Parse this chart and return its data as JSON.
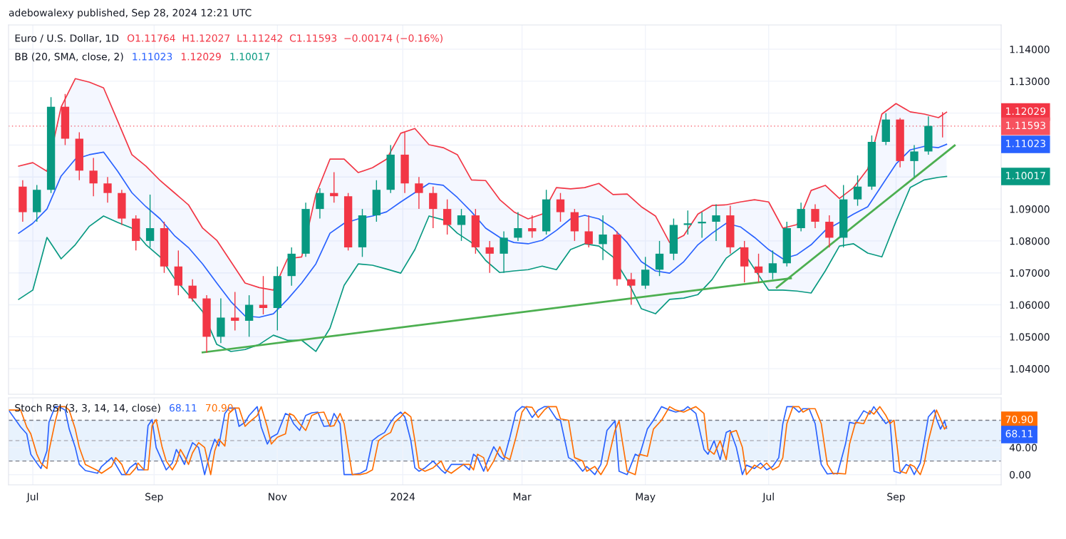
{
  "chart_data": [
    {
      "type": "candlestick",
      "title": "Euro / U.S. Dollar, 1D",
      "annotations": [
        "adebowalexy published, Sep 28, 2024 12:21 UTC",
        "O1.11764  H1.12027  L1.11242  C1.11593  −0.00174 (−0.16%)",
        "BB (20, SMA, close, 2)",
        "1.11023",
        "1.12029",
        "1.10017",
        "1.11023",
        "1.12029",
        "1.10017"
      ],
      "x": [
        "2023-06-28",
        "2023-07-05",
        "2023-07-12",
        "2023-07-19",
        "2023-07-26",
        "2023-08-02",
        "2023-08-09",
        "2023-08-16",
        "2023-08-23",
        "2023-08-30",
        "2023-09-06",
        "2023-09-13",
        "2023-09-20",
        "2023-09-27",
        "2023-10-04",
        "2023-10-11",
        "2023-10-18",
        "2023-10-25",
        "2023-11-01",
        "2023-11-08",
        "2023-11-15",
        "2023-11-22",
        "2023-11-29",
        "2023-12-06",
        "2023-12-13",
        "2023-12-20",
        "2023-12-27",
        "2024-01-03",
        "2024-01-10",
        "2024-01-17",
        "2024-01-24",
        "2024-01-31",
        "2024-02-07",
        "2024-02-14",
        "2024-02-21",
        "2024-02-28",
        "2024-03-06",
        "2024-03-13",
        "2024-03-20",
        "2024-03-27",
        "2024-04-03",
        "2024-04-10",
        "2024-04-17",
        "2024-04-24",
        "2024-05-01",
        "2024-05-08",
        "2024-05-15",
        "2024-05-22",
        "2024-05-29",
        "2024-06-05",
        "2024-06-12",
        "2024-06-19",
        "2024-06-26",
        "2024-07-03",
        "2024-07-10",
        "2024-07-17",
        "2024-07-24",
        "2024-07-31",
        "2024-08-07",
        "2024-08-14",
        "2024-08-21",
        "2024-08-28",
        "2024-09-04",
        "2024-09-11",
        "2024-09-18",
        "2024-09-25"
      ],
      "ohlc": [
        [
          1.097,
          1.099,
          1.086,
          1.089
        ],
        [
          1.089,
          1.0975,
          1.086,
          1.096
        ],
        [
          1.096,
          1.125,
          1.095,
          1.122
        ],
        [
          1.122,
          1.126,
          1.11,
          1.112
        ],
        [
          1.112,
          1.114,
          1.099,
          1.102
        ],
        [
          1.102,
          1.106,
          1.094,
          1.098
        ],
        [
          1.098,
          1.1,
          1.092,
          1.095
        ],
        [
          1.095,
          1.096,
          1.085,
          1.087
        ],
        [
          1.087,
          1.088,
          1.077,
          1.08
        ],
        [
          1.08,
          1.0945,
          1.078,
          1.084
        ],
        [
          1.084,
          1.086,
          1.07,
          1.072
        ],
        [
          1.072,
          1.077,
          1.063,
          1.066
        ],
        [
          1.066,
          1.068,
          1.061,
          1.062
        ],
        [
          1.062,
          1.063,
          1.045,
          1.05
        ],
        [
          1.05,
          1.062,
          1.048,
          1.056
        ],
        [
          1.056,
          1.064,
          1.052,
          1.055
        ],
        [
          1.055,
          1.063,
          1.05,
          1.06
        ],
        [
          1.06,
          1.069,
          1.057,
          1.059
        ],
        [
          1.059,
          1.072,
          1.052,
          1.069
        ],
        [
          1.069,
          1.078,
          1.066,
          1.076
        ],
        [
          1.076,
          1.092,
          1.075,
          1.09
        ],
        [
          1.09,
          1.0965,
          1.087,
          1.095
        ],
        [
          1.095,
          1.1015,
          1.092,
          1.094
        ],
        [
          1.094,
          1.095,
          1.077,
          1.078
        ],
        [
          1.078,
          1.09,
          1.075,
          1.088
        ],
        [
          1.088,
          1.099,
          1.086,
          1.096
        ],
        [
          1.096,
          1.11,
          1.095,
          1.107
        ],
        [
          1.107,
          1.114,
          1.095,
          1.098
        ],
        [
          1.098,
          1.1,
          1.09,
          1.095
        ],
        [
          1.095,
          1.097,
          1.084,
          1.09
        ],
        [
          1.09,
          1.093,
          1.082,
          1.085
        ],
        [
          1.085,
          1.09,
          1.08,
          1.088
        ],
        [
          1.088,
          1.09,
          1.076,
          1.078
        ],
        [
          1.078,
          1.08,
          1.07,
          1.076
        ],
        [
          1.076,
          1.083,
          1.07,
          1.081
        ],
        [
          1.081,
          1.089,
          1.08,
          1.084
        ],
        [
          1.084,
          1.088,
          1.081,
          1.083
        ],
        [
          1.083,
          1.096,
          1.082,
          1.093
        ],
        [
          1.093,
          1.095,
          1.086,
          1.089
        ],
        [
          1.089,
          1.09,
          1.08,
          1.083
        ],
        [
          1.083,
          1.088,
          1.078,
          1.079
        ],
        [
          1.079,
          1.088,
          1.074,
          1.082
        ],
        [
          1.082,
          1.083,
          1.066,
          1.068
        ],
        [
          1.068,
          1.07,
          1.06,
          1.066
        ],
        [
          1.066,
          1.075,
          1.065,
          1.071
        ],
        [
          1.071,
          1.08,
          1.069,
          1.076
        ],
        [
          1.076,
          1.087,
          1.074,
          1.085
        ],
        [
          1.085,
          1.0895,
          1.082,
          1.0855
        ],
        [
          1.0855,
          1.089,
          1.081,
          1.086
        ],
        [
          1.086,
          1.0915,
          1.08,
          1.088
        ],
        [
          1.088,
          1.091,
          1.076,
          1.078
        ],
        [
          1.078,
          1.08,
          1.067,
          1.072
        ],
        [
          1.072,
          1.076,
          1.067,
          1.07
        ],
        [
          1.07,
          1.077,
          1.068,
          1.073
        ],
        [
          1.073,
          1.086,
          1.072,
          1.084
        ],
        [
          1.084,
          1.092,
          1.083,
          1.09
        ],
        [
          1.09,
          1.0915,
          1.084,
          1.086
        ],
        [
          1.086,
          1.088,
          1.078,
          1.081
        ],
        [
          1.081,
          1.0975,
          1.078,
          1.093
        ],
        [
          1.093,
          1.1005,
          1.091,
          1.097
        ],
        [
          1.097,
          1.113,
          1.096,
          1.111
        ],
        [
          1.111,
          1.12,
          1.11,
          1.118
        ],
        [
          1.118,
          1.1185,
          1.103,
          1.105
        ],
        [
          1.105,
          1.11,
          1.1,
          1.108
        ],
        [
          1.108,
          1.119,
          1.107,
          1.116
        ],
        [
          1.116,
          1.1203,
          1.1124,
          1.11593
        ]
      ],
      "colors": [
        "#f23645",
        "#089981",
        "#089981",
        "#f23645",
        "#f23645",
        "#f23645",
        "#f23645",
        "#f23645",
        "#f23645",
        "#089981",
        "#f23645",
        "#f23645",
        "#f23645",
        "#f23645",
        "#089981",
        "#f23645",
        "#089981",
        "#f23645",
        "#089981",
        "#089981",
        "#089981",
        "#089981",
        "#f23645",
        "#f23645",
        "#089981",
        "#089981",
        "#089981",
        "#f23645",
        "#f23645",
        "#f23645",
        "#f23645",
        "#089981",
        "#f23645",
        "#f23645",
        "#089981",
        "#089981",
        "#f23645",
        "#089981",
        "#f23645",
        "#f23645",
        "#f23645",
        "#089981",
        "#f23645",
        "#f23645",
        "#089981",
        "#089981",
        "#089981",
        "#089981",
        "#089981",
        "#089981",
        "#f23645",
        "#f23645",
        "#f23645",
        "#089981",
        "#089981",
        "#089981",
        "#f23645",
        "#f23645",
        "#089981",
        "#089981",
        "#089981",
        "#089981",
        "#f23645",
        "#089981",
        "#089981",
        "#f23645"
      ],
      "series": [
        {
          "type": "line",
          "color": "#2962ff",
          "x": [
            "2023-06-26",
            "2023-07-03",
            "2023-07-10",
            "2023-07-17",
            "2023-07-24",
            "2023-07-31",
            "2023-08-07",
            "2023-08-14",
            "2023-08-21",
            "2023-08-28",
            "2023-09-04",
            "2023-09-11",
            "2023-09-18",
            "2023-09-25",
            "2023-10-02",
            "2023-10-09",
            "2023-10-16",
            "2023-10-23",
            "2023-10-30",
            "2023-11-06",
            "2023-11-13",
            "2023-11-20",
            "2023-11-27",
            "2023-12-04",
            "2023-12-11",
            "2023-12-18",
            "2023-12-25",
            "2024-01-01",
            "2024-01-08",
            "2024-01-15",
            "2024-01-22",
            "2024-01-29",
            "2024-02-05",
            "2024-02-12",
            "2024-02-19",
            "2024-02-26",
            "2024-03-04",
            "2024-03-11",
            "2024-03-18",
            "2024-03-25",
            "2024-04-01",
            "2024-04-08",
            "2024-04-15",
            "2024-04-22",
            "2024-04-29",
            "2024-05-06",
            "2024-05-13",
            "2024-05-20",
            "2024-05-27",
            "2024-06-03",
            "2024-06-10",
            "2024-06-17",
            "2024-06-24",
            "2024-07-01",
            "2024-07-08",
            "2024-07-15",
            "2024-07-22",
            "2024-07-29",
            "2024-08-05",
            "2024-08-12",
            "2024-08-19",
            "2024-08-26",
            "2024-09-02",
            "2024-09-09",
            "2024-09-16",
            "2024-09-23",
            "2024-09-27"
          ],
          "values": [
            1.0824,
            1.0855,
            1.09,
            1.1003,
            1.1056,
            1.107,
            1.1078,
            1.1018,
            1.0951,
            1.0907,
            1.0869,
            1.0817,
            1.0779,
            1.0728,
            1.0668,
            1.061,
            1.0565,
            1.0561,
            1.0572,
            1.0617,
            1.0668,
            1.0728,
            1.0824,
            1.0855,
            1.0869,
            1.0878,
            1.0891,
            1.0922,
            1.0951,
            1.098,
            1.0974,
            1.0936,
            1.0891,
            1.084,
            1.0811,
            1.0795,
            1.0791,
            1.0802,
            1.0833,
            1.0869,
            1.088,
            1.0869,
            1.084,
            1.0795,
            1.0735,
            1.0706,
            1.0699,
            1.0735,
            1.0788,
            1.0824,
            1.0855,
            1.0844,
            1.0811,
            1.0773,
            1.0744,
            1.0757,
            1.0788,
            1.0833,
            1.0858,
            1.0884,
            1.0907,
            1.0974,
            1.1041,
            1.1085,
            1.1096,
            1.1092,
            1.11023
          ],
          "upper": [
            1.1034,
            1.1045,
            1.1018,
            1.1219,
            1.1308,
            1.1297,
            1.1279,
            1.1175,
            1.107,
            1.1034,
            1.0989,
            1.0951,
            1.0913,
            1.084,
            1.0802,
            1.0735,
            1.0668,
            1.0654,
            1.0646,
            1.0744,
            1.075,
            1.0945,
            1.1056,
            1.1056,
            1.1014,
            1.1029,
            1.1056,
            1.1137,
            1.1152,
            1.1101,
            1.1092,
            1.107,
            1.0991,
            1.0989,
            1.0929,
            1.0891,
            1.0869,
            1.0884,
            1.0967,
            1.0963,
            1.0967,
            1.098,
            1.0945,
            1.0947,
            1.0907,
            1.0878,
            1.0795,
            1.0817,
            1.0884,
            1.0911,
            1.0913,
            1.0922,
            1.0929,
            1.0922,
            1.084,
            1.0851,
            1.0958,
            1.0974,
            1.0933,
            1.0967,
            1.1025,
            1.1197,
            1.123,
            1.1204,
            1.1197,
            1.1186,
            1.12029
          ],
          "lower": [
            1.0617,
            1.0646,
            1.0811,
            1.0744,
            1.0788,
            1.0846,
            1.0878,
            1.0858,
            1.084,
            1.0788,
            1.075,
            1.0683,
            1.0632,
            1.0579,
            1.0476,
            1.0454,
            1.046,
            1.0476,
            1.0505,
            1.0489,
            1.0489,
            1.0454,
            1.0527,
            1.0661,
            1.0728,
            1.0724,
            1.0712,
            1.0699,
            1.0773,
            1.0878,
            1.0866,
            1.0824,
            1.0795,
            1.0739,
            1.0701,
            1.0706,
            1.071,
            1.0721,
            1.071,
            1.0773,
            1.0791,
            1.0784,
            1.075,
            1.0677,
            1.0588,
            1.0572,
            1.0617,
            1.0621,
            1.0632,
            1.0679,
            1.0746,
            1.0779,
            1.0712,
            1.0646,
            1.0646,
            1.0643,
            1.0637,
            1.0706,
            1.0784,
            1.0791,
            1.0762,
            1.075,
            1.0862,
            1.0967,
            1.0991,
            1.0999,
            1.10017
          ]
        },
        {
          "type": "line",
          "color": "#f23645",
          "x": [
            "2023-06-26",
            "2023-07-03",
            "2023-07-10",
            "2023-07-17",
            "2023-07-24",
            "2023-07-31",
            "2023-08-07",
            "2023-08-14",
            "2023-08-21",
            "2023-08-28",
            "2023-09-04",
            "2023-09-11",
            "2023-09-18",
            "2023-09-25",
            "2023-10-02",
            "2023-10-09",
            "2023-10-16",
            "2023-10-23",
            "2023-10-30",
            "2023-11-06",
            "2023-11-13",
            "2023-11-20",
            "2023-11-27",
            "2023-12-04",
            "2023-12-11",
            "2023-12-18",
            "2023-12-25",
            "2024-01-01",
            "2024-01-08",
            "2024-01-15",
            "2024-01-22",
            "2024-01-29",
            "2024-02-05",
            "2024-02-12",
            "2024-02-19",
            "2024-02-26",
            "2024-03-04",
            "2024-03-11",
            "2024-03-18",
            "2024-03-25",
            "2024-04-01",
            "2024-04-08",
            "2024-04-15",
            "2024-04-22",
            "2024-04-29",
            "2024-05-06",
            "2024-05-13",
            "2024-05-20",
            "2024-05-27",
            "2024-06-03",
            "2024-06-10",
            "2024-06-17",
            "2024-06-24",
            "2024-07-01",
            "2024-07-08",
            "2024-07-15",
            "2024-07-22",
            "2024-07-29",
            "2024-08-05",
            "2024-08-12",
            "2024-08-19",
            "2024-08-26",
            "2024-09-02",
            "2024-09-09",
            "2024-09-16",
            "2024-09-23",
            "2024-09-27"
          ],
          "values": [
            1.1034,
            1.1045,
            1.1018,
            1.1219,
            1.1308,
            1.1297,
            1.1279,
            1.1175,
            1.107,
            1.1034,
            1.0989,
            1.0951,
            1.0913,
            1.084,
            1.0802,
            1.0735,
            1.0668,
            1.0654,
            1.0646,
            1.0744,
            1.075,
            1.0945,
            1.1056,
            1.1056,
            1.1014,
            1.1029,
            1.1056,
            1.1137,
            1.1152,
            1.1101,
            1.1092,
            1.107,
            1.0991,
            1.0989,
            1.0929,
            1.0891,
            1.0869,
            1.0884,
            1.0967,
            1.0963,
            1.0967,
            1.098,
            1.0945,
            1.0947,
            1.0907,
            1.0878,
            1.0795,
            1.0817,
            1.0884,
            1.0911,
            1.0913,
            1.0922,
            1.0929,
            1.0922,
            1.084,
            1.0851,
            1.0958,
            1.0974,
            1.0933,
            1.0967,
            1.1025,
            1.1197,
            1.123,
            1.1204,
            1.1197,
            1.1186,
            1.12029
          ]
        },
        {
          "type": "line",
          "color": "#089981",
          "x": [
            "2023-06-26",
            "2023-07-03",
            "2023-07-10",
            "2023-07-17",
            "2023-07-24",
            "2023-07-31",
            "2023-08-07",
            "2023-08-14",
            "2023-08-21",
            "2023-08-28",
            "2023-09-04",
            "2023-09-11",
            "2023-09-18",
            "2023-09-25",
            "2023-10-02",
            "2023-10-09",
            "2023-10-16",
            "2023-10-23",
            "2023-10-30",
            "2023-11-06",
            "2023-11-13",
            "2023-11-20",
            "2023-11-27",
            "2023-12-04",
            "2023-12-11",
            "2023-12-18",
            "2023-12-25",
            "2024-01-01",
            "2024-01-08",
            "2024-01-15",
            "2024-01-22",
            "2024-01-29",
            "2024-02-05",
            "2024-02-12",
            "2024-02-19",
            "2024-02-26",
            "2024-03-04",
            "2024-03-11",
            "2024-03-18",
            "2024-03-25",
            "2024-04-01",
            "2024-04-08",
            "2024-04-15",
            "2024-04-22",
            "2024-04-29",
            "2024-05-06",
            "2024-05-13",
            "2024-05-20",
            "2024-05-27",
            "2024-06-03",
            "2024-06-10",
            "2024-06-17",
            "2024-06-24",
            "2024-07-01",
            "2024-07-08",
            "2024-07-15",
            "2024-07-22",
            "2024-07-29",
            "2024-08-05",
            "2024-08-12",
            "2024-08-19",
            "2024-08-26",
            "2024-09-02",
            "2024-09-09",
            "2024-09-16",
            "2024-09-23",
            "2024-09-27"
          ],
          "values": [
            1.0617,
            1.0646,
            1.0811,
            1.0744,
            1.0788,
            1.0846,
            1.0878,
            1.0858,
            1.084,
            1.0788,
            1.075,
            1.0683,
            1.0632,
            1.0579,
            1.0476,
            1.0454,
            1.046,
            1.0476,
            1.0505,
            1.0489,
            1.0489,
            1.0454,
            1.0527,
            1.0661,
            1.0728,
            1.0724,
            1.0712,
            1.0699,
            1.0773,
            1.0878,
            1.0866,
            1.0824,
            1.0795,
            1.0739,
            1.0701,
            1.0706,
            1.071,
            1.0721,
            1.071,
            1.0773,
            1.0791,
            1.0784,
            1.075,
            1.0677,
            1.0588,
            1.0572,
            1.0617,
            1.0621,
            1.0632,
            1.0679,
            1.0746,
            1.0779,
            1.0712,
            1.0646,
            1.0646,
            1.0643,
            1.0637,
            1.0706,
            1.0784,
            1.0791,
            1.0762,
            1.075,
            1.0862,
            1.0967,
            1.0991,
            1.0999,
            1.10017
          ]
        },
        {
          "type": "line",
          "color": "#4caf50",
          "x": [
            "2023-09-25",
            "2024-07-12"
          ],
          "values": [
            1.0451,
            1.0683
          ]
        },
        {
          "type": "line",
          "color": "#4caf50",
          "x": [
            "2024-07-05",
            "2024-10-01"
          ],
          "values": [
            1.0654,
            1.1099
          ]
        }
      ],
      "ref_lines": [
        {
          "axis": "y",
          "value": 1.11593,
          "label": "1.11593",
          "color": "#f7525f",
          "line_style": "dotted"
        }
      ],
      "xlim": [
        "2023-06-21",
        "2024-10-24"
      ],
      "xticks": [
        {
          "value": "2023-07-03",
          "label": null
        },
        {
          "value": "2023-09-01",
          "label": null
        },
        {
          "value": "2023-11-01",
          "label": null
        },
        {
          "value": "2024-01-02",
          "label": null
        },
        {
          "value": "2024-03-01",
          "label": null
        },
        {
          "value": "2024-05-01",
          "label": null
        },
        {
          "value": "2024-07-01",
          "label": null
        },
        {
          "value": "2024-09-02",
          "label": null
        }
      ],
      "ylim": [
        1.032,
        1.1476
      ],
      "yticks": [
        {
          "value": 1.04,
          "label": "1.04000"
        },
        {
          "value": 1.05,
          "label": "1.05000"
        },
        {
          "value": 1.06,
          "label": "1.06000"
        },
        {
          "value": 1.07,
          "label": "1.07000"
        },
        {
          "value": 1.08,
          "label": "1.08000"
        },
        {
          "value": 1.09,
          "label": "1.09000"
        },
        {
          "value": 1.1,
          "label": null
        },
        {
          "value": 1.11,
          "label": null
        },
        {
          "value": 1.12,
          "label": null
        },
        {
          "value": 1.13,
          "label": "1.13000"
        },
        {
          "value": 1.14,
          "label": "1.14000"
        }
      ],
      "tick_labels": "y",
      "grid": true
    },
    {
      "type": "line",
      "title": "Stoch RSI (3, 3, 14, 14, close)",
      "annotations": [
        "68.11",
        "70.90",
        "68.11",
        "70.90"
      ],
      "x": [
        "2023-06-21",
        "2023-06-27",
        "2023-06-30",
        "2023-07-02",
        "2023-07-05",
        "2023-07-07",
        "2023-07-10",
        "2023-07-11",
        "2023-07-14",
        "2023-07-16",
        "2023-07-19",
        "2023-07-21",
        "2023-07-24",
        "2023-07-26",
        "2023-07-29",
        "2023-08-04",
        "2023-08-06",
        "2023-08-11",
        "2023-08-13",
        "2023-08-16",
        "2023-08-18",
        "2023-08-20",
        "2023-08-23",
        "2023-08-24",
        "2023-08-27",
        "2023-08-29",
        "2023-08-31",
        "2023-09-02",
        "2023-09-05",
        "2023-09-07",
        "2023-09-10",
        "2023-09-12",
        "2023-09-14",
        "2023-09-16",
        "2023-09-18",
        "2023-09-20",
        "2023-09-23",
        "2023-09-26",
        "2023-09-29",
        "2023-10-01",
        "2023-10-03",
        "2023-10-06",
        "2023-10-08",
        "2023-10-11",
        "2023-10-13",
        "2023-10-16",
        "2023-10-18",
        "2023-10-22",
        "2023-10-24",
        "2023-10-27",
        "2023-10-29",
        "2023-11-01",
        "2023-11-05",
        "2023-11-07",
        "2023-11-09",
        "2023-11-12",
        "2023-11-15",
        "2023-11-18",
        "2023-11-21",
        "2023-11-24",
        "2023-11-27",
        "2023-11-29",
        "2023-12-02",
        "2023-12-04",
        "2023-12-08",
        "2023-12-12",
        "2023-12-15",
        "2023-12-18",
        "2023-12-21",
        "2023-12-24",
        "2023-12-27",
        "2023-12-29",
        "2024-01-01",
        "2024-01-03",
        "2024-01-06",
        "2024-01-08",
        "2024-01-10",
        "2024-01-13",
        "2024-01-17",
        "2024-01-21",
        "2024-01-23",
        "2024-01-26",
        "2024-02-01",
        "2024-02-04",
        "2024-02-06",
        "2024-02-08",
        "2024-02-11",
        "2024-02-13",
        "2024-02-16",
        "2024-02-19",
        "2024-02-21",
        "2024-02-24",
        "2024-02-27",
        "2024-03-01",
        "2024-03-03",
        "2024-03-06",
        "2024-03-09",
        "2024-03-12",
        "2024-03-14",
        "2024-03-18",
        "2024-03-20",
        "2024-03-24",
        "2024-03-27",
        "2024-03-31",
        "2024-04-02",
        "2024-04-06",
        "2024-04-09",
        "2024-04-12",
        "2024-04-16",
        "2024-04-18",
        "2024-04-22",
        "2024-04-26",
        "2024-04-28",
        "2024-05-02",
        "2024-05-05",
        "2024-05-09",
        "2024-05-13",
        "2024-05-16",
        "2024-05-20",
        "2024-05-22",
        "2024-05-26",
        "2024-05-30",
        "2024-06-01",
        "2024-06-04",
        "2024-06-07",
        "2024-06-10",
        "2024-06-12",
        "2024-06-15",
        "2024-06-18",
        "2024-06-20",
        "2024-06-24",
        "2024-06-27",
        "2024-06-30",
        "2024-07-03",
        "2024-07-06",
        "2024-07-08",
        "2024-07-10",
        "2024-07-13",
        "2024-07-16",
        "2024-07-18",
        "2024-07-21",
        "2024-07-24",
        "2024-07-27",
        "2024-07-30",
        "2024-08-02",
        "2024-08-04",
        "2024-08-08",
        "2024-08-10",
        "2024-08-13",
        "2024-08-17",
        "2024-08-20",
        "2024-08-22",
        "2024-08-25",
        "2024-08-28",
        "2024-08-30",
        "2024-09-01",
        "2024-09-04",
        "2024-09-07",
        "2024-09-09",
        "2024-09-11",
        "2024-09-14",
        "2024-09-16",
        "2024-09-18",
        "2024-09-21",
        "2024-09-22",
        "2024-09-24",
        "2024-09-26",
        "2024-09-27"
      ],
      "series": [
        {
          "color": "#2962ff",
          "values": [
            95,
            70,
            60,
            30,
            17,
            9,
            35,
            77,
            100,
            100,
            95,
            67,
            40,
            15,
            6,
            2,
            12,
            25,
            15,
            0,
            0,
            10,
            17,
            7,
            7,
            72,
            81,
            40,
            20,
            7,
            17,
            37,
            27,
            15,
            32,
            47,
            40,
            0,
            35,
            52,
            42,
            90,
            98,
            98,
            71,
            77,
            87,
            100,
            70,
            45,
            55,
            60,
            90,
            87,
            75,
            65,
            87,
            91,
            92,
            71,
            72,
            90,
            75,
            0,
            0,
            2,
            7,
            50,
            57,
            62,
            77,
            85,
            92,
            85,
            50,
            10,
            5,
            10,
            20,
            7,
            2,
            15,
            15,
            7,
            30,
            25,
            5,
            20,
            41,
            27,
            22,
            55,
            92,
            100,
            99,
            84,
            95,
            100,
            100,
            82,
            80,
            25,
            20,
            5,
            12,
            0,
            15,
            65,
            79,
            5,
            0,
            30,
            27,
            67,
            80,
            100,
            95,
            92,
            95,
            100,
            90,
            37,
            30,
            50,
            22,
            62,
            65,
            40,
            0,
            14,
            9,
            17,
            7,
            12,
            25,
            75,
            100,
            100,
            92,
            97,
            97,
            75,
            15,
            1,
            2,
            1,
            45,
            77,
            75,
            94,
            89,
            100,
            87,
            75,
            80,
            5,
            2,
            15,
            12,
            0,
            17,
            50,
            85,
            95,
            82,
            67,
            79,
            68.11
          ]
        },
        {
          "color": "#ff6d00",
          "values": [
            95,
            95,
            70,
            60,
            30,
            17,
            9,
            35,
            77,
            100,
            100,
            95,
            67,
            40,
            15,
            6,
            2,
            12,
            25,
            15,
            0,
            0,
            10,
            17,
            7,
            7,
            72,
            81,
            40,
            20,
            7,
            17,
            37,
            27,
            15,
            32,
            47,
            40,
            0,
            35,
            52,
            42,
            90,
            98,
            98,
            71,
            77,
            87,
            100,
            70,
            45,
            55,
            60,
            90,
            87,
            75,
            65,
            87,
            91,
            92,
            71,
            72,
            90,
            75,
            0,
            0,
            2,
            7,
            50,
            57,
            62,
            77,
            85,
            92,
            85,
            50,
            10,
            5,
            10,
            20,
            7,
            2,
            15,
            15,
            7,
            30,
            25,
            5,
            20,
            41,
            27,
            22,
            55,
            92,
            100,
            99,
            84,
            95,
            100,
            100,
            82,
            80,
            25,
            20,
            5,
            12,
            0,
            15,
            65,
            79,
            5,
            0,
            30,
            27,
            67,
            80,
            100,
            95,
            92,
            95,
            100,
            90,
            37,
            30,
            50,
            22,
            62,
            65,
            40,
            0,
            14,
            9,
            17,
            7,
            12,
            25,
            75,
            100,
            100,
            92,
            97,
            97,
            75,
            15,
            1,
            2,
            1,
            45,
            77,
            75,
            94,
            89,
            100,
            87,
            75,
            80,
            5,
            2,
            15,
            12,
            0,
            17,
            50,
            85,
            95,
            82,
            67,
            70.9
          ]
        }
      ],
      "ref_lines": [
        {
          "axis": "y",
          "value": 80,
          "color": "#787b86",
          "line_style": "dashed"
        },
        {
          "axis": "y",
          "value": 50,
          "color": "#b2b5be",
          "line_style": "dashed"
        },
        {
          "axis": "y",
          "value": 20,
          "color": "#787b86",
          "line_style": "dashed"
        }
      ],
      "bands": [
        {
          "axis": "y",
          "from": 20,
          "to": 80,
          "color": "#e8f2fd"
        }
      ],
      "xlim": [
        "2023-06-21",
        "2024-10-24"
      ],
      "xticks": [
        {
          "value": "2023-07-03",
          "label": "Jul"
        },
        {
          "value": "2023-09-01",
          "label": "Sep"
        },
        {
          "value": "2023-11-01",
          "label": "Nov"
        },
        {
          "value": "2024-01-02",
          "label": "2024"
        },
        {
          "value": "2024-03-01",
          "label": "Mar"
        },
        {
          "value": "2024-05-01",
          "label": "May"
        },
        {
          "value": "2024-07-01",
          "label": "Jul"
        },
        {
          "value": "2024-09-02",
          "label": "Sep"
        }
      ],
      "ylim": [
        -15,
        113
      ],
      "yticks": [
        {
          "value": 0,
          "label": "0.00"
        },
        {
          "value": 40,
          "label": "40.00"
        }
      ],
      "grid": true
    }
  ]
}
